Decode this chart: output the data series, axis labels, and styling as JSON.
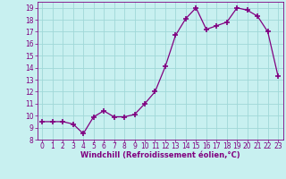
{
  "x": [
    0,
    1,
    2,
    3,
    4,
    5,
    6,
    7,
    8,
    9,
    10,
    11,
    12,
    13,
    14,
    15,
    16,
    17,
    18,
    19,
    20,
    21,
    22,
    23
  ],
  "y": [
    9.5,
    9.5,
    9.5,
    9.3,
    8.5,
    9.9,
    10.4,
    9.9,
    9.9,
    10.1,
    11.0,
    12.0,
    14.1,
    16.7,
    18.1,
    19.0,
    17.2,
    17.5,
    17.8,
    19.0,
    18.8,
    18.3,
    17.0,
    13.3
  ],
  "line_color": "#800080",
  "marker": "+",
  "marker_size": 4,
  "marker_linewidth": 1.2,
  "background_color": "#c8f0f0",
  "grid_color": "#a0d8d8",
  "xlabel": "Windchill (Refroidissement éolien,°C)",
  "ylabel": "",
  "ylim": [
    8,
    19.5
  ],
  "xlim": [
    -0.5,
    23.5
  ],
  "yticks": [
    8,
    9,
    10,
    11,
    12,
    13,
    14,
    15,
    16,
    17,
    18,
    19
  ],
  "xticks": [
    0,
    1,
    2,
    3,
    4,
    5,
    6,
    7,
    8,
    9,
    10,
    11,
    12,
    13,
    14,
    15,
    16,
    17,
    18,
    19,
    20,
    21,
    22,
    23
  ],
  "tick_color": "#800080",
  "label_color": "#800080",
  "label_fontsize": 6.0,
  "tick_fontsize": 5.5
}
